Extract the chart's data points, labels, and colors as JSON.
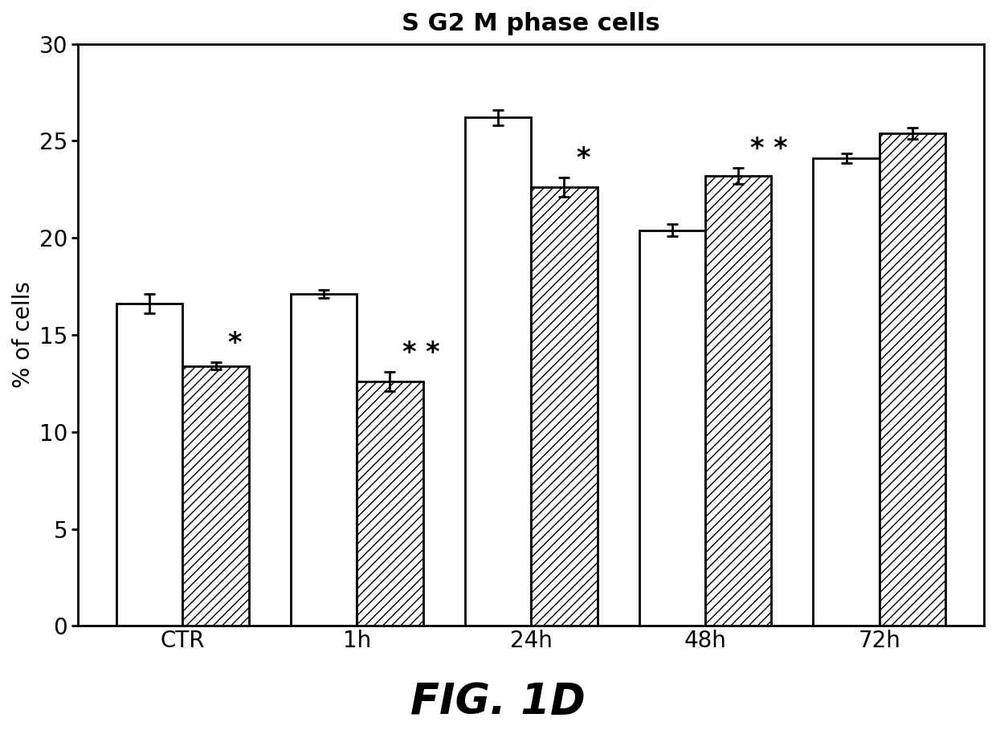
{
  "title": "S G2 M phase cells",
  "xlabel": "",
  "ylabel": "% of cells",
  "figcaption": "FIG. 1D",
  "categories": [
    "CTR",
    "1h",
    "24h",
    "48h",
    "72h"
  ],
  "white_bars": [
    16.6,
    17.1,
    26.2,
    20.4,
    24.1
  ],
  "white_errors": [
    0.5,
    0.2,
    0.4,
    0.3,
    0.25
  ],
  "hatch_bars": [
    13.4,
    12.6,
    22.6,
    23.2,
    25.4
  ],
  "hatch_errors": [
    0.2,
    0.5,
    0.5,
    0.4,
    0.3
  ],
  "ylim": [
    0,
    30
  ],
  "yticks": [
    0,
    5,
    10,
    15,
    20,
    25,
    30
  ],
  "bar_width": 0.38,
  "significance_labels": {
    "CTR": "*",
    "1h": "* *",
    "24h": "*",
    "48h": "* *",
    "72h": ""
  },
  "background_color": "#ffffff",
  "bar_edge_color": "#000000",
  "hatch_pattern": "///",
  "title_fontsize": 22,
  "axis_label_fontsize": 20,
  "tick_fontsize": 20,
  "sig_fontsize": 24,
  "caption_fontsize": 38
}
